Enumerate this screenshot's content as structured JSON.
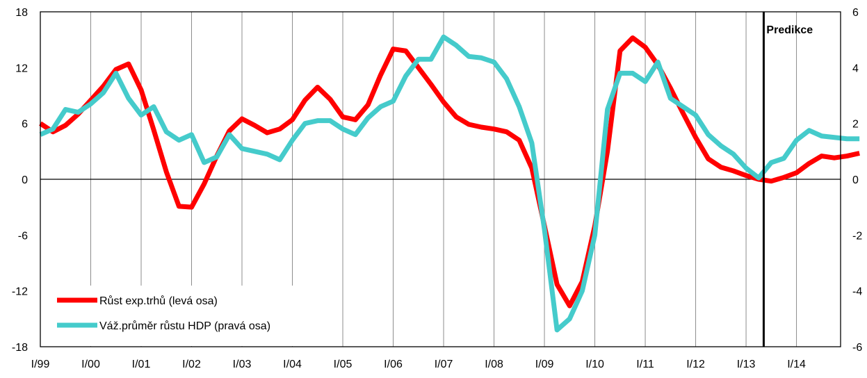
{
  "chart_data": {
    "type": "line",
    "title": "",
    "xlabel": "",
    "ylabel_left": "",
    "ylabel_right": "",
    "x_start_quarter": "I/99",
    "x_tick_labels": [
      "I/99",
      "I/00",
      "I/01",
      "I/02",
      "I/03",
      "I/04",
      "I/05",
      "I/06",
      "I/07",
      "I/08",
      "I/09",
      "I/10",
      "I/11",
      "I/12",
      "I/13",
      "I/14"
    ],
    "ylim_left": [
      -18,
      18
    ],
    "yticks_left": [
      -18,
      -12,
      -6,
      0,
      6,
      12,
      18
    ],
    "ylim_right": [
      -6,
      6
    ],
    "yticks_right": [
      -6,
      -4,
      -2,
      0,
      2,
      4,
      6
    ],
    "grid": "vertical",
    "zero_line": true,
    "legend_position": "bottom-left",
    "annotation": {
      "text": "Predikce",
      "at_quarter_index": 57.4
    },
    "series": [
      {
        "name": "Růst exp.trhů (levá osa)",
        "axis": "left",
        "color": "#ff0000",
        "values": [
          6.0,
          5.1,
          5.8,
          7.0,
          8.5,
          10.0,
          11.8,
          12.4,
          9.6,
          5.3,
          0.8,
          -2.9,
          -3.0,
          -0.5,
          2.5,
          5.2,
          6.5,
          5.8,
          5.0,
          5.4,
          6.4,
          8.5,
          9.9,
          8.6,
          6.7,
          6.4,
          8.0,
          11.2,
          14.0,
          13.8,
          12.0,
          10.2,
          8.3,
          6.7,
          5.9,
          5.6,
          5.4,
          5.1,
          4.2,
          1.2,
          -5.0,
          -11.3,
          -13.6,
          -11.0,
          -5.0,
          3.0,
          13.8,
          15.2,
          14.2,
          12.3,
          9.8,
          7.1,
          4.5,
          2.2,
          1.3,
          0.9,
          0.4,
          0.0,
          -0.2,
          0.2,
          0.7,
          1.7,
          2.5,
          2.3,
          2.5,
          2.8
        ]
      },
      {
        "name": "Váž.průměr růstu HDP (pravá osa)",
        "axis": "right",
        "color": "#45cbcb",
        "values": [
          1.6,
          1.8,
          2.5,
          2.4,
          2.7,
          3.1,
          3.8,
          2.9,
          2.3,
          2.6,
          1.7,
          1.4,
          1.6,
          0.6,
          0.8,
          1.6,
          1.1,
          1.0,
          0.9,
          0.7,
          1.4,
          2.0,
          2.1,
          2.1,
          1.8,
          1.6,
          2.2,
          2.6,
          2.8,
          3.7,
          4.3,
          4.3,
          5.1,
          4.8,
          4.4,
          4.35,
          4.2,
          3.6,
          2.6,
          1.3,
          -1.8,
          -5.4,
          -5.0,
          -4.0,
          -2.0,
          2.5,
          3.8,
          3.8,
          3.5,
          4.2,
          2.9,
          2.6,
          2.3,
          1.6,
          1.2,
          0.9,
          0.4,
          0.05,
          0.6,
          0.75,
          1.4,
          1.75,
          1.55,
          1.5,
          1.45,
          1.45
        ]
      }
    ]
  }
}
